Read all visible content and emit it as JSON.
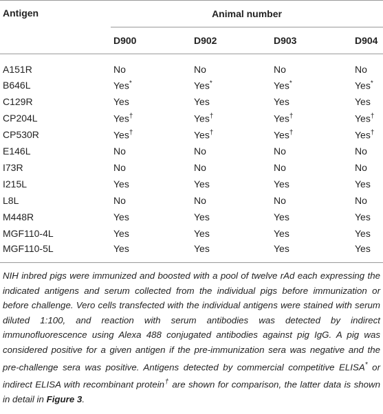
{
  "table": {
    "header": {
      "antigen": "Antigen",
      "group": "Animal number",
      "columns": [
        "D900",
        "D902",
        "D903",
        "D904"
      ]
    },
    "rows": [
      {
        "antigen": "A151R",
        "cells": [
          "No",
          "No",
          "No",
          "No"
        ]
      },
      {
        "antigen": "B646L",
        "cells": [
          {
            "text": "Yes",
            "mark": "*"
          },
          {
            "text": "Yes",
            "mark": "*"
          },
          {
            "text": "Yes",
            "mark": "*"
          },
          {
            "text": "Yes",
            "mark": "*"
          }
        ]
      },
      {
        "antigen": "C129R",
        "cells": [
          "Yes",
          "Yes",
          "Yes",
          "Yes"
        ]
      },
      {
        "antigen": "CP204L",
        "cells": [
          {
            "text": "Yes",
            "mark": "†"
          },
          {
            "text": "Yes",
            "mark": "†"
          },
          {
            "text": "Yes",
            "mark": "†"
          },
          {
            "text": "Yes",
            "mark": "†"
          }
        ]
      },
      {
        "antigen": "CP530R",
        "cells": [
          {
            "text": "Yes",
            "mark": "†"
          },
          {
            "text": "Yes",
            "mark": "†"
          },
          {
            "text": "Yes",
            "mark": "†"
          },
          {
            "text": "Yes",
            "mark": "†"
          }
        ]
      },
      {
        "antigen": "E146L",
        "cells": [
          "No",
          "No",
          "No",
          "No"
        ]
      },
      {
        "antigen": "I73R",
        "cells": [
          "No",
          "No",
          "No",
          "No"
        ]
      },
      {
        "antigen": "I215L",
        "cells": [
          "Yes",
          "Yes",
          "Yes",
          "Yes"
        ]
      },
      {
        "antigen": "L8L",
        "cells": [
          "No",
          "No",
          "No",
          "No"
        ]
      },
      {
        "antigen": "M448R",
        "cells": [
          "Yes",
          "Yes",
          "Yes",
          "Yes"
        ]
      },
      {
        "antigen": "MGF110-4L",
        "cells": [
          "Yes",
          "Yes",
          "Yes",
          "Yes"
        ]
      },
      {
        "antigen": "MGF110-5L",
        "cells": [
          "Yes",
          "Yes",
          "Yes",
          "Yes"
        ]
      }
    ],
    "note": [
      "NIH inbred pigs were immunized and boosted with a pool of twelve rAd each expressing the indicated antigens and serum collected from the individual pigs before immunization or before challenge. Vero cells transfected with the individual antigens were stained with serum diluted 1:100, and reaction with serum antibodies was detected by indirect immunofluorescence using Alexa 488 conjugated antibodies against pig IgG. A pig was considered positive for a given antigen if the pre-immunization sera was negative and the pre-challenge sera was positive. Antigens detected by commercial competitive ELISA",
      "*",
      " or indirect ELISA with recombinant protein",
      "†",
      " are shown for comparison, the latter data is shown in detail in ",
      "Figure 3",
      "."
    ]
  }
}
